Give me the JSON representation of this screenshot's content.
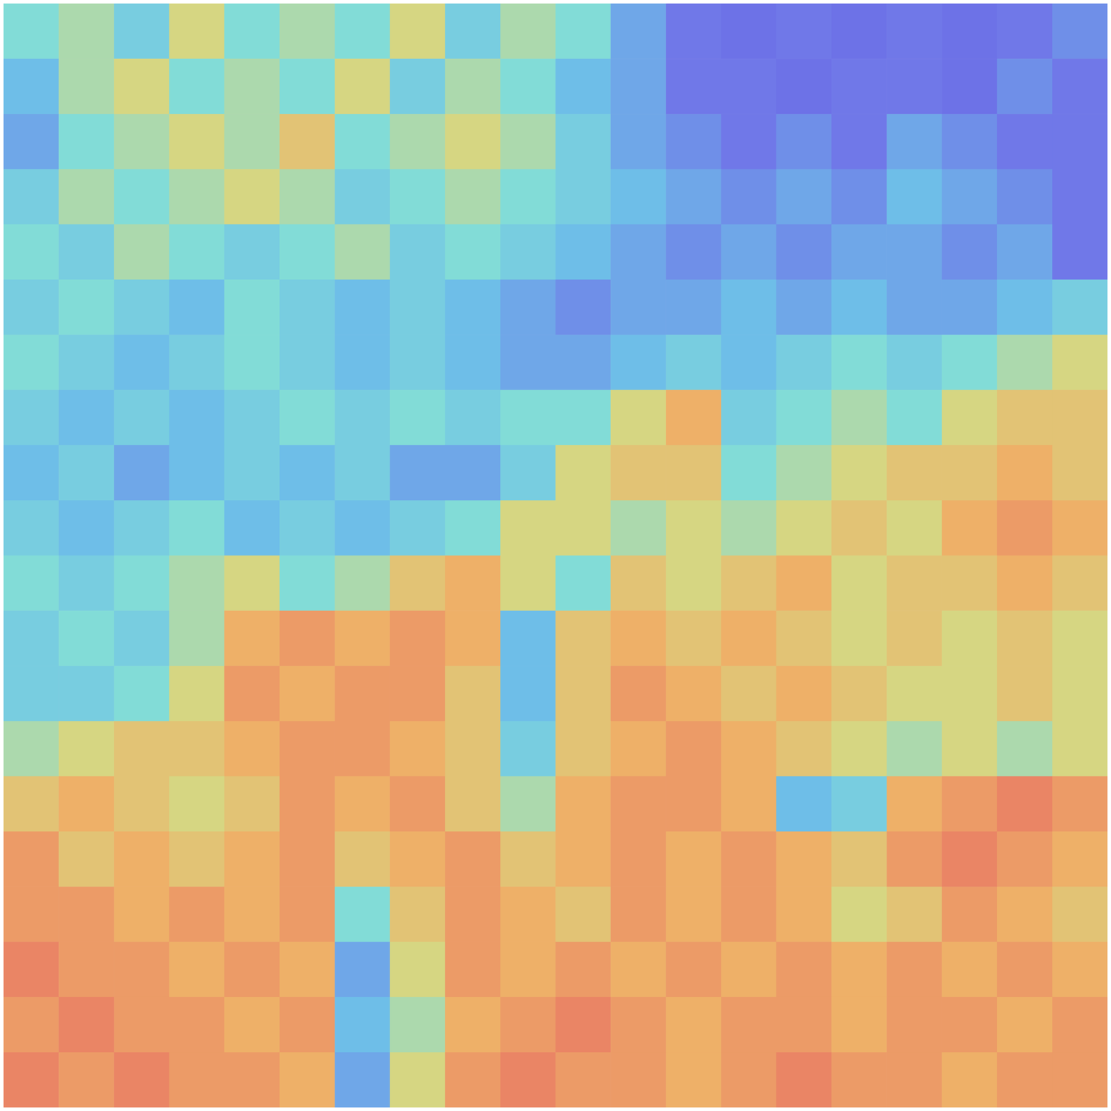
{
  "chart_data": {
    "type": "heatmap",
    "tick_labels": false,
    "zlim": [
      0,
      1
    ],
    "cells": [
      [
        0.45,
        0.5,
        0.4,
        0.55,
        0.45,
        0.5,
        0.45,
        0.55,
        0.4,
        0.5,
        0.45,
        0.3,
        0.2,
        0.15,
        0.2,
        0.15,
        0.2,
        0.15,
        0.2,
        0.25
      ],
      [
        0.35,
        0.5,
        0.55,
        0.45,
        0.5,
        0.45,
        0.55,
        0.4,
        0.5,
        0.45,
        0.35,
        0.3,
        0.2,
        0.2,
        0.15,
        0.2,
        0.2,
        0.15,
        0.25,
        0.2
      ],
      [
        0.3,
        0.45,
        0.5,
        0.55,
        0.5,
        0.6,
        0.45,
        0.5,
        0.55,
        0.5,
        0.4,
        0.3,
        0.25,
        0.2,
        0.25,
        0.2,
        0.3,
        0.25,
        0.2,
        0.2
      ],
      [
        0.4,
        0.5,
        0.45,
        0.5,
        0.55,
        0.5,
        0.4,
        0.45,
        0.5,
        0.45,
        0.4,
        0.35,
        0.3,
        0.25,
        0.3,
        0.25,
        0.35,
        0.3,
        0.25,
        0.2
      ],
      [
        0.45,
        0.4,
        0.5,
        0.45,
        0.4,
        0.45,
        0.5,
        0.4,
        0.45,
        0.4,
        0.35,
        0.3,
        0.25,
        0.3,
        0.25,
        0.3,
        0.3,
        0.25,
        0.3,
        0.2
      ],
      [
        0.4,
        0.45,
        0.4,
        0.35,
        0.45,
        0.4,
        0.35,
        0.4,
        0.35,
        0.3,
        0.25,
        0.3,
        0.3,
        0.35,
        0.3,
        0.35,
        0.3,
        0.3,
        0.35,
        0.4
      ],
      [
        0.45,
        0.4,
        0.35,
        0.4,
        0.45,
        0.4,
        0.35,
        0.4,
        0.35,
        0.3,
        0.3,
        0.35,
        0.4,
        0.35,
        0.4,
        0.45,
        0.4,
        0.45,
        0.5,
        0.55
      ],
      [
        0.4,
        0.35,
        0.4,
        0.35,
        0.4,
        0.45,
        0.4,
        0.45,
        0.4,
        0.45,
        0.45,
        0.55,
        0.65,
        0.4,
        0.45,
        0.5,
        0.45,
        0.55,
        0.6,
        0.6
      ],
      [
        0.35,
        0.4,
        0.3,
        0.35,
        0.4,
        0.35,
        0.4,
        0.3,
        0.3,
        0.4,
        0.55,
        0.6,
        0.6,
        0.45,
        0.5,
        0.55,
        0.6,
        0.6,
        0.65,
        0.6
      ],
      [
        0.4,
        0.35,
        0.4,
        0.45,
        0.35,
        0.4,
        0.35,
        0.4,
        0.45,
        0.55,
        0.55,
        0.5,
        0.55,
        0.5,
        0.55,
        0.6,
        0.55,
        0.65,
        0.7,
        0.65
      ],
      [
        0.45,
        0.4,
        0.45,
        0.5,
        0.55,
        0.45,
        0.5,
        0.6,
        0.65,
        0.55,
        0.45,
        0.6,
        0.55,
        0.6,
        0.65,
        0.55,
        0.6,
        0.6,
        0.65,
        0.6
      ],
      [
        0.4,
        0.45,
        0.4,
        0.5,
        0.65,
        0.7,
        0.65,
        0.7,
        0.65,
        0.35,
        0.6,
        0.65,
        0.6,
        0.65,
        0.6,
        0.55,
        0.6,
        0.55,
        0.6,
        0.55
      ],
      [
        0.4,
        0.4,
        0.45,
        0.55,
        0.7,
        0.65,
        0.7,
        0.7,
        0.6,
        0.35,
        0.6,
        0.7,
        0.65,
        0.6,
        0.65,
        0.6,
        0.55,
        0.55,
        0.6,
        0.55
      ],
      [
        0.5,
        0.55,
        0.6,
        0.6,
        0.65,
        0.7,
        0.7,
        0.65,
        0.6,
        0.4,
        0.6,
        0.65,
        0.7,
        0.65,
        0.6,
        0.55,
        0.5,
        0.55,
        0.5,
        0.55
      ],
      [
        0.6,
        0.65,
        0.6,
        0.55,
        0.6,
        0.7,
        0.65,
        0.7,
        0.6,
        0.5,
        0.65,
        0.7,
        0.7,
        0.65,
        0.35,
        0.4,
        0.65,
        0.7,
        0.75,
        0.7
      ],
      [
        0.7,
        0.6,
        0.65,
        0.6,
        0.65,
        0.7,
        0.6,
        0.65,
        0.7,
        0.6,
        0.65,
        0.7,
        0.65,
        0.7,
        0.65,
        0.6,
        0.7,
        0.75,
        0.7,
        0.65
      ],
      [
        0.7,
        0.7,
        0.65,
        0.7,
        0.65,
        0.7,
        0.45,
        0.6,
        0.7,
        0.65,
        0.6,
        0.7,
        0.65,
        0.7,
        0.65,
        0.55,
        0.6,
        0.7,
        0.65,
        0.6
      ],
      [
        0.75,
        0.7,
        0.7,
        0.65,
        0.7,
        0.65,
        0.3,
        0.55,
        0.7,
        0.65,
        0.7,
        0.65,
        0.7,
        0.65,
        0.7,
        0.65,
        0.7,
        0.65,
        0.7,
        0.65
      ],
      [
        0.7,
        0.75,
        0.7,
        0.7,
        0.65,
        0.7,
        0.35,
        0.5,
        0.65,
        0.7,
        0.75,
        0.7,
        0.65,
        0.7,
        0.7,
        0.65,
        0.7,
        0.7,
        0.65,
        0.7
      ],
      [
        0.75,
        0.7,
        0.75,
        0.7,
        0.7,
        0.65,
        0.3,
        0.55,
        0.7,
        0.75,
        0.7,
        0.7,
        0.65,
        0.7,
        0.75,
        0.7,
        0.7,
        0.65,
        0.7,
        0.7
      ]
    ]
  }
}
